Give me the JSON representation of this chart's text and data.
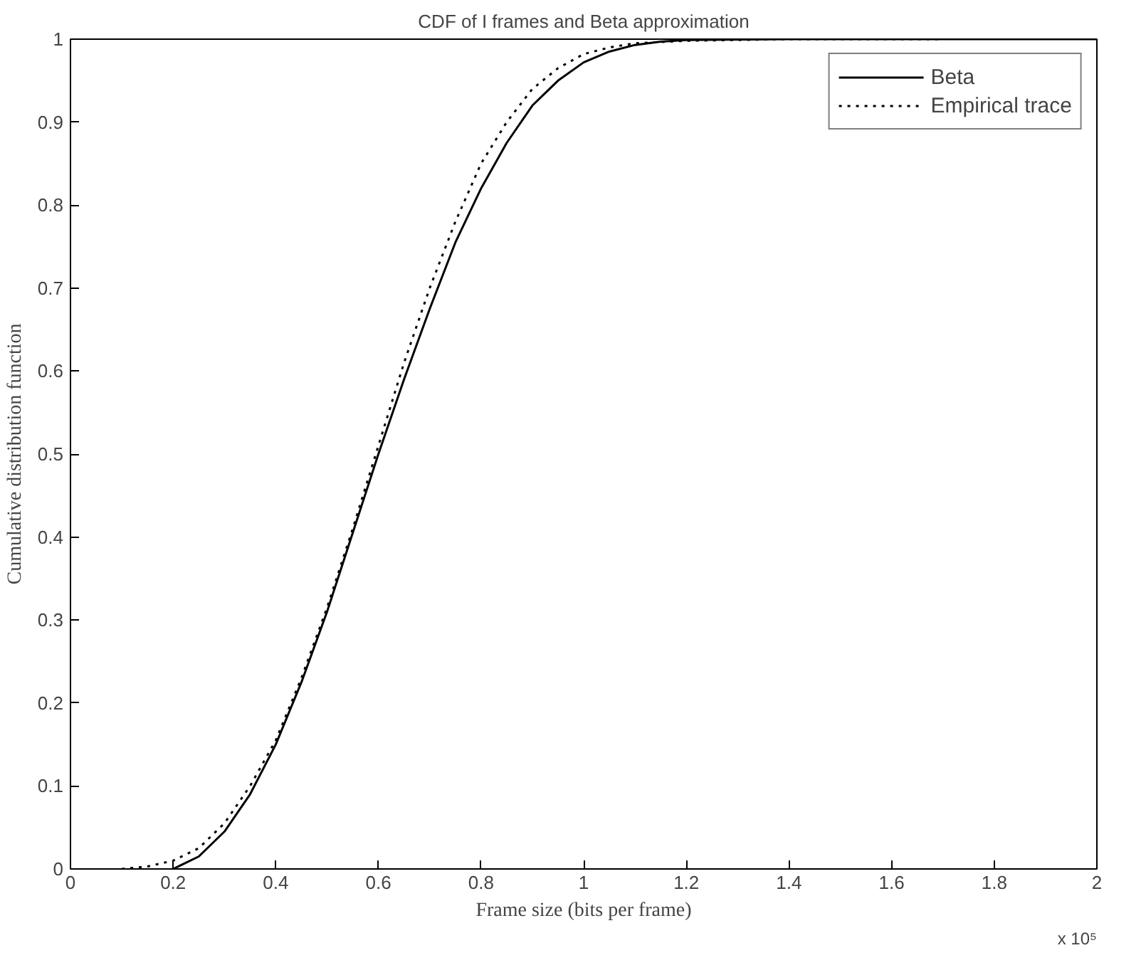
{
  "chart_data": {
    "type": "line",
    "title": "CDF of I frames and Beta approximation",
    "xlabel": "Frame size (bits per frame)",
    "ylabel": "Cumulative distribution function",
    "annotations": [
      "x 10⁵"
    ],
    "xlim": [
      0,
      2
    ],
    "xticks": [
      0,
      0.2,
      0.4,
      0.6,
      0.8,
      1,
      1.2,
      1.4,
      1.6,
      1.8,
      2
    ],
    "ylim": [
      0,
      1
    ],
    "yticks": [
      0,
      0.1,
      0.2,
      0.3,
      0.4,
      0.5,
      0.6,
      0.7,
      0.8,
      0.9,
      1
    ],
    "grid": false,
    "legend": "top right",
    "series": [
      {
        "name": "Beta",
        "color": "#000000",
        "line_style": "solid",
        "x": [
          0.2,
          0.25,
          0.3,
          0.35,
          0.4,
          0.45,
          0.5,
          0.55,
          0.6,
          0.65,
          0.7,
          0.75,
          0.8,
          0.85,
          0.9,
          0.95,
          1.0,
          1.05,
          1.1,
          1.15,
          1.2,
          1.4,
          1.6,
          1.8,
          2.0
        ],
        "values": [
          0,
          0.015,
          0.045,
          0.09,
          0.15,
          0.225,
          0.31,
          0.405,
          0.5,
          0.59,
          0.675,
          0.755,
          0.82,
          0.875,
          0.92,
          0.95,
          0.972,
          0.985,
          0.993,
          0.997,
          0.999,
          1,
          1,
          1,
          1
        ]
      },
      {
        "name": "Empirical trace",
        "color": "#000000",
        "line_style": "dotted",
        "x": [
          0.1,
          0.15,
          0.2,
          0.25,
          0.3,
          0.35,
          0.4,
          0.45,
          0.5,
          0.55,
          0.6,
          0.65,
          0.7,
          0.75,
          0.8,
          0.85,
          0.9,
          0.95,
          1.0,
          1.05,
          1.1,
          1.2,
          1.4,
          1.6,
          1.7
        ],
        "values": [
          0,
          0.003,
          0.01,
          0.025,
          0.055,
          0.1,
          0.155,
          0.23,
          0.315,
          0.41,
          0.51,
          0.61,
          0.7,
          0.78,
          0.85,
          0.9,
          0.94,
          0.965,
          0.982,
          0.99,
          0.995,
          0.998,
          1,
          1,
          1
        ]
      }
    ]
  }
}
